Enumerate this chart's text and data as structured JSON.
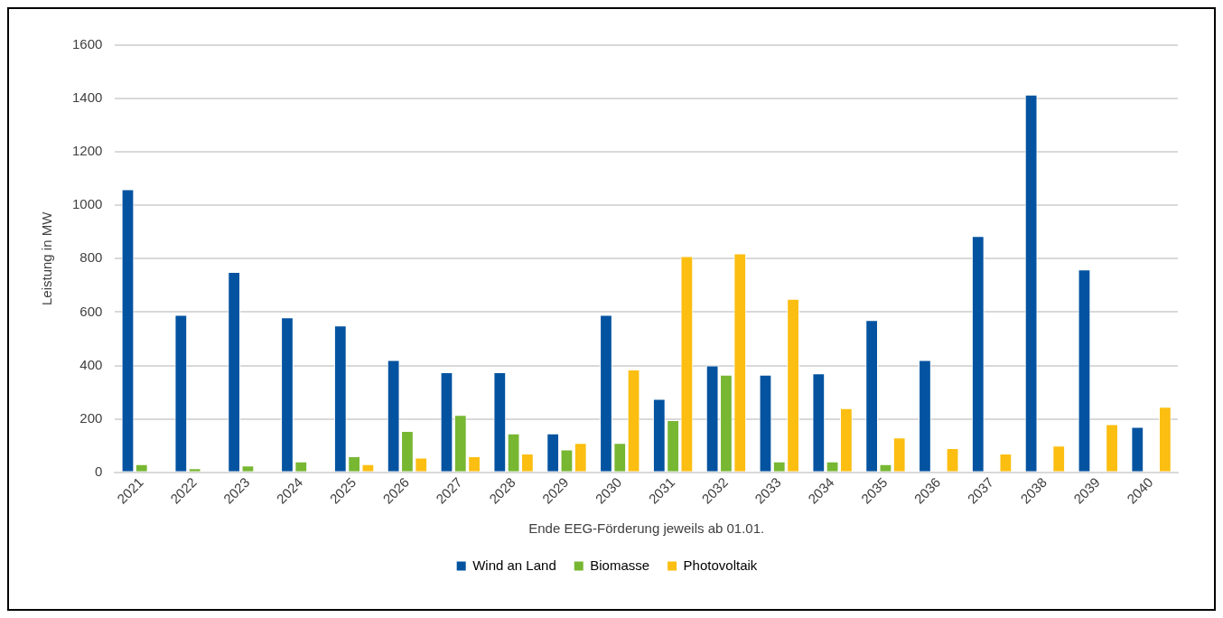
{
  "chart_data": {
    "type": "bar",
    "xlabel": "Ende EEG-Förderung jeweils ab 01.01.",
    "ylabel": "Leistung in MW",
    "categories": [
      "2021",
      "2022",
      "2023",
      "2024",
      "2025",
      "2026",
      "2027",
      "2028",
      "2029",
      "2030",
      "2031",
      "2032",
      "2033",
      "2034",
      "2035",
      "2036",
      "2037",
      "2038",
      "2039",
      "2040"
    ],
    "series": [
      {
        "name": "Wind an Land",
        "color": "#0353a0",
        "values": [
          1060,
          590,
          750,
          580,
          550,
          420,
          375,
          375,
          145,
          590,
          275,
          400,
          365,
          370,
          570,
          420,
          885,
          1415,
          760,
          170
        ]
      },
      {
        "name": "Biomasse",
        "color": "#77b732",
        "values": [
          30,
          15,
          25,
          40,
          60,
          155,
          215,
          145,
          85,
          110,
          195,
          365,
          40,
          40,
          30,
          null,
          null,
          null,
          null,
          null
        ]
      },
      {
        "name": "Photovoltaik",
        "color": "#fbbe11",
        "values": [
          null,
          null,
          null,
          null,
          30,
          55,
          60,
          70,
          110,
          385,
          810,
          820,
          650,
          240,
          130,
          90,
          70,
          100,
          180,
          245
        ]
      }
    ],
    "ylim": [
      0,
      1600
    ],
    "yticks": [
      0,
      200,
      400,
      600,
      800,
      1000,
      1200,
      1400,
      1600
    ],
    "grid": "y",
    "legend": "bottom"
  }
}
